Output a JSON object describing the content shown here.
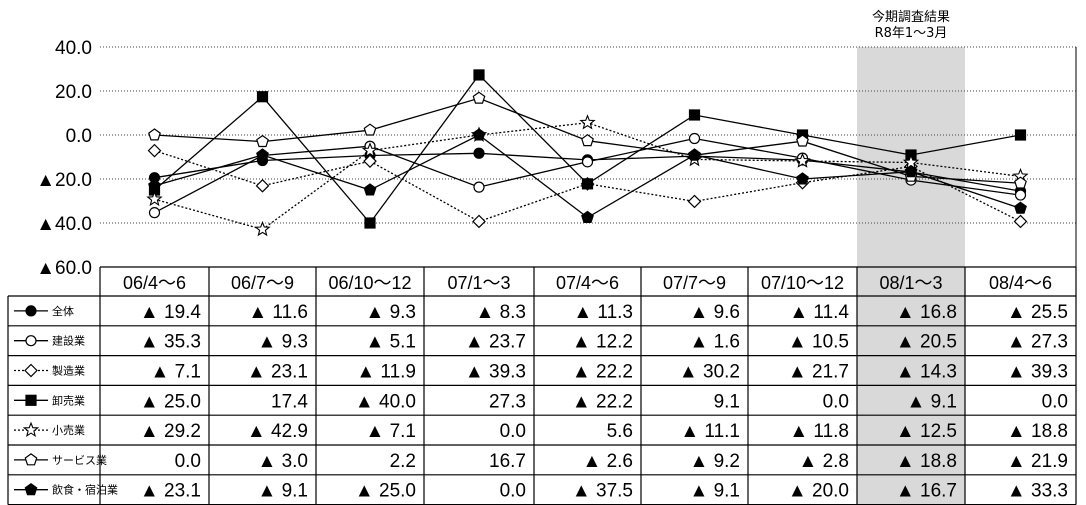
{
  "chart_data": {
    "type": "line",
    "annotation": [
      "今期調査結果",
      "R8年1～3月"
    ],
    "highlight_index": 7,
    "ylim": [
      -60,
      40
    ],
    "yticks": [
      40,
      20,
      0,
      -20,
      -40,
      -60
    ],
    "ytick_labels": [
      "40.0",
      "20.0",
      "0.0",
      "▲20.0",
      "▲40.0",
      "▲60.0"
    ],
    "categories": [
      "06/4～6",
      "06/7～9",
      "06/10～12",
      "07/1～3",
      "07/4～6",
      "07/7～9",
      "07/10～12",
      "08/1～3",
      "08/4～6"
    ],
    "series": [
      {
        "name": "全体",
        "marker": "circle-filled",
        "dash": false,
        "values": [
          -19.4,
          -11.6,
          -9.3,
          -8.3,
          -11.3,
          -9.6,
          -11.4,
          -16.8,
          -25.5
        ],
        "labels": [
          "▲ 19.4",
          "▲ 11.6",
          "▲ 9.3",
          "▲ 8.3",
          "▲ 11.3",
          "▲ 9.6",
          "▲ 11.4",
          "▲ 16.8",
          "▲ 25.5"
        ]
      },
      {
        "name": "建設業",
        "marker": "circle-open",
        "dash": false,
        "values": [
          -35.3,
          -9.3,
          -5.1,
          -23.7,
          -12.2,
          -1.6,
          -10.5,
          -20.5,
          -27.3
        ],
        "labels": [
          "▲ 35.3",
          "▲ 9.3",
          "▲ 5.1",
          "▲ 23.7",
          "▲ 12.2",
          "▲ 1.6",
          "▲ 10.5",
          "▲ 20.5",
          "▲ 27.3"
        ]
      },
      {
        "name": "製造業",
        "marker": "diamond-open",
        "dash": true,
        "values": [
          -7.1,
          -23.1,
          -11.9,
          -39.3,
          -22.2,
          -30.2,
          -21.7,
          -14.3,
          -39.3
        ],
        "labels": [
          "▲ 7.1",
          "▲ 23.1",
          "▲ 11.9",
          "▲ 39.3",
          "▲ 22.2",
          "▲ 30.2",
          "▲ 21.7",
          "▲ 14.3",
          "▲ 39.3"
        ]
      },
      {
        "name": "卸売業",
        "marker": "square-filled",
        "dash": false,
        "values": [
          -25.0,
          17.4,
          -40.0,
          27.3,
          -22.2,
          9.1,
          0.0,
          -9.1,
          0.0
        ],
        "labels": [
          "▲ 25.0",
          "17.4",
          "▲ 40.0",
          "27.3",
          "▲ 22.2",
          "9.1",
          "0.0",
          "▲ 9.1",
          "0.0"
        ]
      },
      {
        "name": "小売業",
        "marker": "star-open",
        "dash": true,
        "values": [
          -29.2,
          -42.9,
          -7.1,
          0.0,
          5.6,
          -11.1,
          -11.8,
          -12.5,
          -18.8
        ],
        "labels": [
          "▲ 29.2",
          "▲ 42.9",
          "▲ 7.1",
          "0.0",
          "5.6",
          "▲ 11.1",
          "▲ 11.8",
          "▲ 12.5",
          "▲ 18.8"
        ]
      },
      {
        "name": "サービス業",
        "marker": "pentagon-open",
        "dash": false,
        "values": [
          0.0,
          -3.0,
          2.2,
          16.7,
          -2.6,
          -9.2,
          -2.8,
          -18.8,
          -21.9
        ],
        "labels": [
          "0.0",
          "▲ 3.0",
          "2.2",
          "16.7",
          "▲ 2.6",
          "▲ 9.2",
          "▲ 2.8",
          "▲ 18.8",
          "▲ 21.9"
        ]
      },
      {
        "name": "飲食・宿泊業",
        "marker": "pentagon-filled",
        "dash": false,
        "values": [
          -23.1,
          -9.1,
          -25.0,
          0.0,
          -37.5,
          -9.1,
          -20.0,
          -16.7,
          -33.3
        ],
        "labels": [
          "▲ 23.1",
          "▲ 9.1",
          "▲ 25.0",
          "0.0",
          "▲ 37.5",
          "▲ 9.1",
          "▲ 20.0",
          "▲ 16.7",
          "▲ 33.3"
        ]
      }
    ]
  }
}
